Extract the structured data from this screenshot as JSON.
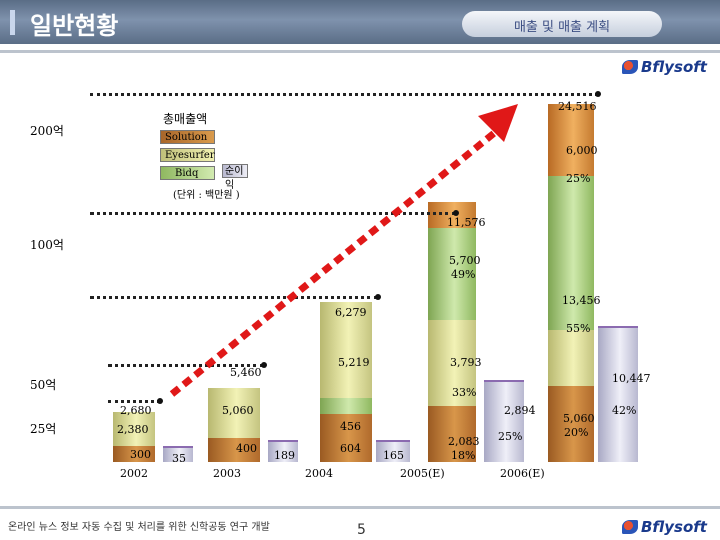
{
  "header": {
    "title": "일반현황",
    "subtitle": "매출 및 매출 계획"
  },
  "logo_text": "Bflysoft",
  "footer": {
    "text": "온라인 뉴스 정보 자동 수집 및 처리를 위한 신학공동 연구 개발",
    "page": "5"
  },
  "legend": {
    "title": "총매출액",
    "items": [
      "Solution",
      "Eyesurfer",
      "Bidq"
    ],
    "net_income": "순이익",
    "unit": "(단위 : 백만원 )"
  },
  "chart_data": {
    "type": "bar",
    "title": "총매출액",
    "y_tick_labels": [
      "200억",
      "100억",
      "50억",
      "25억"
    ],
    "categories": [
      "2002",
      "2003",
      "2004",
      "2005(E)",
      "2006(E)"
    ],
    "series": [
      {
        "name": "Solution",
        "values": [
          300,
          400,
          604,
          2083,
          5060
        ]
      },
      {
        "name": "Eyesurfer",
        "values": [
          2380,
          5060,
          5219,
          3793,
          6000
        ]
      },
      {
        "name": "Bidq",
        "values": [
          0,
          0,
          456,
          5700,
          13456
        ]
      },
      {
        "name": "순이익",
        "values": [
          35,
          189,
          165,
          2894,
          10447
        ]
      }
    ],
    "totals": [
      2680,
      5460,
      6279,
      11576,
      24516
    ],
    "net_income_rates": [
      "",
      "",
      "",
      "25%",
      "42%"
    ],
    "segment_labels": {
      "2002": [
        "300",
        "2,380",
        "2,680",
        "35"
      ],
      "2003": [
        "400",
        "5,060",
        "5,460",
        "189"
      ],
      "2004": [
        "604",
        "456",
        "5,219",
        "6,279",
        "165"
      ],
      "2005(E)": [
        "2,083",
        "18%",
        "3,793",
        "33%",
        "5,700",
        "49%",
        "11,576",
        "2,894",
        "25%"
      ],
      "2006(E)": [
        "5,060",
        "20%",
        "13,456",
        "55%",
        "6,000",
        "25%",
        "24,516",
        "10,447",
        "42%"
      ]
    }
  }
}
